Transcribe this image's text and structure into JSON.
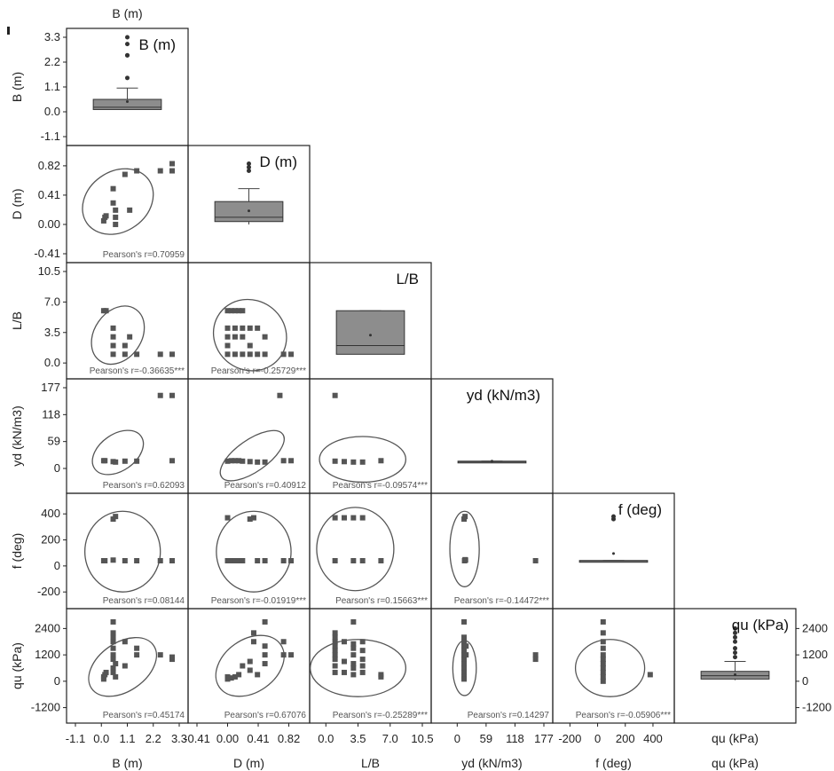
{
  "panel_mark": "▌",
  "variables": [
    {
      "key": "B",
      "label": "B (m)",
      "diag_label": "B (m)",
      "ticks": [
        "-1.1",
        "0.0",
        "1.1",
        "2.2",
        "3.3"
      ],
      "min": -1.1,
      "max": 3.3
    },
    {
      "key": "D",
      "label": "D (m)",
      "diag_label": "D (m)",
      "ticks": [
        "-0.41",
        "0.00",
        "0.41",
        "0.82"
      ],
      "min": -0.41,
      "max": 0.98
    },
    {
      "key": "LB",
      "label": "L/B",
      "diag_label": "L/B",
      "ticks": [
        "0.0",
        "3.5",
        "7.0",
        "10.5"
      ],
      "min": -0.8,
      "max": 10.5
    },
    {
      "key": "yd",
      "label": "yd  (kN/m3)",
      "diag_label": "yd  (kN/m3)",
      "ticks": [
        "0",
        "59",
        "118",
        "177"
      ],
      "min": -35,
      "max": 177
    },
    {
      "key": "f",
      "label": "f (deg)",
      "diag_label": "f (deg)",
      "ticks": [
        "-200",
        "0",
        "200",
        "400"
      ],
      "min": -260,
      "max": 490
    },
    {
      "key": "qu",
      "label": "qu (kPa)",
      "diag_label": "qu (kPa)",
      "ticks": [
        "-1200",
        "0",
        "1200",
        "2400"
      ],
      "min": -1500,
      "max": 2900
    }
  ],
  "top_axis_label": "B (m)",
  "bottom_extra_label": "qu (kPa)",
  "chart_data": {
    "type": "scatter",
    "title": "",
    "correlations": [
      {
        "x": "B",
        "y": "D",
        "label": "Pearson's r=0.70959"
      },
      {
        "x": "B",
        "y": "LB",
        "label": "Pearson's r=-0.36635***"
      },
      {
        "x": "D",
        "y": "LB",
        "label": "Pearson's r=-0.25729***"
      },
      {
        "x": "B",
        "y": "yd",
        "label": "Pearson's r=0.62093"
      },
      {
        "x": "D",
        "y": "yd",
        "label": "Pearson's r=0.40912"
      },
      {
        "x": "LB",
        "y": "yd",
        "label": "Pearson's r=-0.09574***"
      },
      {
        "x": "B",
        "y": "f",
        "label": "Pearson's r=0.08144"
      },
      {
        "x": "D",
        "y": "f",
        "label": "Pearson's r=-0.01919***"
      },
      {
        "x": "LB",
        "y": "f",
        "label": "Pearson's r=0.15663***"
      },
      {
        "x": "yd",
        "y": "f",
        "label": "Pearson's r=-0.14472***"
      },
      {
        "x": "B",
        "y": "qu",
        "label": "Pearson's r=0.45174"
      },
      {
        "x": "D",
        "y": "qu",
        "label": "Pearson's r=0.67076"
      },
      {
        "x": "LB",
        "y": "qu",
        "label": "Pearson's r=-0.25289***"
      },
      {
        "x": "yd",
        "y": "qu",
        "label": "Pearson's r=0.14297"
      },
      {
        "x": "f",
        "y": "qu",
        "label": "Pearson's r=-0.05906***"
      }
    ],
    "scatter_points": {
      "B-D": [
        [
          0.1,
          0.05
        ],
        [
          0.15,
          0.1
        ],
        [
          0.2,
          0.12
        ],
        [
          0.5,
          0.3
        ],
        [
          0.5,
          0.5
        ],
        [
          0.6,
          0.2
        ],
        [
          0.6,
          0.1
        ],
        [
          0.6,
          0.0
        ],
        [
          1.0,
          0.7
        ],
        [
          1.2,
          0.2
        ],
        [
          1.5,
          0.75
        ],
        [
          2.5,
          0.75
        ],
        [
          3.0,
          0.85
        ],
        [
          3.0,
          0.75
        ]
      ],
      "B-LB": [
        [
          0.1,
          6
        ],
        [
          0.2,
          6
        ],
        [
          0.5,
          4
        ],
        [
          0.5,
          3
        ],
        [
          0.5,
          2
        ],
        [
          0.5,
          1
        ],
        [
          1.0,
          2
        ],
        [
          1.0,
          1
        ],
        [
          1.2,
          3
        ],
        [
          1.5,
          1
        ],
        [
          2.5,
          1
        ],
        [
          3.0,
          1
        ]
      ],
      "D-LB": [
        [
          0.0,
          6
        ],
        [
          0.05,
          6
        ],
        [
          0.1,
          6
        ],
        [
          0.15,
          6
        ],
        [
          0.2,
          6
        ],
        [
          0.0,
          4
        ],
        [
          0.1,
          4
        ],
        [
          0.2,
          4
        ],
        [
          0.3,
          4
        ],
        [
          0.4,
          4
        ],
        [
          0.0,
          3
        ],
        [
          0.1,
          3
        ],
        [
          0.2,
          3
        ],
        [
          0.3,
          2
        ],
        [
          0.0,
          2
        ],
        [
          0.0,
          1
        ],
        [
          0.1,
          1
        ],
        [
          0.2,
          1
        ],
        [
          0.3,
          1
        ],
        [
          0.4,
          1
        ],
        [
          0.5,
          1
        ],
        [
          0.5,
          3
        ],
        [
          0.75,
          1
        ],
        [
          0.85,
          1
        ]
      ],
      "B-yd": [
        [
          0.1,
          17
        ],
        [
          0.15,
          17
        ],
        [
          0.5,
          15
        ],
        [
          0.6,
          14
        ],
        [
          1.0,
          16
        ],
        [
          1.5,
          16
        ],
        [
          2.5,
          160
        ],
        [
          3.0,
          160
        ],
        [
          3.0,
          17
        ]
      ],
      "D-yd": [
        [
          0.0,
          16
        ],
        [
          0.05,
          17
        ],
        [
          0.1,
          17
        ],
        [
          0.15,
          17
        ],
        [
          0.2,
          16
        ],
        [
          0.3,
          15
        ],
        [
          0.4,
          14
        ],
        [
          0.5,
          14
        ],
        [
          0.7,
          160
        ],
        [
          0.75,
          17
        ],
        [
          0.85,
          17
        ]
      ],
      "LB-yd": [
        [
          1,
          160
        ],
        [
          1,
          16
        ],
        [
          2,
          15
        ],
        [
          3,
          14
        ],
        [
          4,
          14
        ],
        [
          6,
          17
        ]
      ],
      "yd-f": [
        [
          14,
          360
        ],
        [
          16,
          380
        ],
        [
          15,
          40
        ],
        [
          17,
          45
        ],
        [
          16,
          48
        ],
        [
          160,
          40
        ]
      ],
      "B-f": [
        [
          0.1,
          40
        ],
        [
          0.15,
          40
        ],
        [
          0.5,
          360
        ],
        [
          0.6,
          380
        ],
        [
          0.5,
          45
        ],
        [
          1.0,
          40
        ],
        [
          1.5,
          40
        ],
        [
          2.5,
          40
        ],
        [
          3.0,
          40
        ]
      ],
      "D-f": [
        [
          0.0,
          40
        ],
        [
          0.0,
          370
        ],
        [
          0.05,
          40
        ],
        [
          0.1,
          40
        ],
        [
          0.15,
          40
        ],
        [
          0.2,
          40
        ],
        [
          0.3,
          360
        ],
        [
          0.35,
          370
        ],
        [
          0.4,
          40
        ],
        [
          0.5,
          40
        ],
        [
          0.75,
          40
        ],
        [
          0.85,
          40
        ]
      ],
      "LB-f": [
        [
          1,
          40
        ],
        [
          1,
          370
        ],
        [
          2,
          370
        ],
        [
          3,
          370
        ],
        [
          3,
          40
        ],
        [
          4,
          40
        ],
        [
          4,
          370
        ],
        [
          6,
          40
        ]
      ],
      "f-qu": [
        [
          40,
          2700
        ],
        [
          40,
          2200
        ],
        [
          40,
          1800
        ],
        [
          40,
          1500
        ],
        [
          40,
          1200
        ],
        [
          40,
          1000
        ],
        [
          40,
          800
        ],
        [
          40,
          600
        ],
        [
          40,
          400
        ],
        [
          40,
          200
        ],
        [
          40,
          0
        ],
        [
          380,
          300
        ]
      ],
      "B-qu": [
        [
          0.1,
          100
        ],
        [
          0.1,
          200
        ],
        [
          0.15,
          300
        ],
        [
          0.2,
          400
        ],
        [
          0.5,
          2700
        ],
        [
          0.5,
          2200
        ],
        [
          0.5,
          2000
        ],
        [
          0.5,
          1800
        ],
        [
          0.5,
          1500
        ],
        [
          0.5,
          1200
        ],
        [
          0.5,
          1000
        ],
        [
          0.5,
          600
        ],
        [
          0.5,
          400
        ],
        [
          0.6,
          800
        ],
        [
          0.6,
          200
        ],
        [
          1.0,
          1800
        ],
        [
          1.0,
          700
        ],
        [
          1.5,
          1500
        ],
        [
          1.5,
          1200
        ],
        [
          2.5,
          1200
        ],
        [
          3.0,
          1000
        ],
        [
          3.0,
          1100
        ]
      ],
      "D-qu": [
        [
          0.0,
          100
        ],
        [
          0.0,
          200
        ],
        [
          0.05,
          150
        ],
        [
          0.1,
          200
        ],
        [
          0.15,
          300
        ],
        [
          0.2,
          700
        ],
        [
          0.3,
          900
        ],
        [
          0.3,
          500
        ],
        [
          0.35,
          2200
        ],
        [
          0.35,
          1800
        ],
        [
          0.4,
          300
        ],
        [
          0.5,
          2700
        ],
        [
          0.5,
          1600
        ],
        [
          0.5,
          1200
        ],
        [
          0.5,
          800
        ],
        [
          0.75,
          1800
        ],
        [
          0.75,
          1200
        ],
        [
          0.85,
          1200
        ]
      ],
      "LB-qu": [
        [
          1,
          2200
        ],
        [
          1,
          2000
        ],
        [
          1,
          1800
        ],
        [
          1,
          1600
        ],
        [
          1,
          1400
        ],
        [
          1,
          1200
        ],
        [
          1,
          1000
        ],
        [
          1,
          700
        ],
        [
          1,
          400
        ],
        [
          2,
          1800
        ],
        [
          2,
          900
        ],
        [
          2,
          400
        ],
        [
          3,
          2700
        ],
        [
          3,
          1700
        ],
        [
          3,
          1500
        ],
        [
          3,
          1200
        ],
        [
          3,
          800
        ],
        [
          3,
          600
        ],
        [
          3,
          300
        ],
        [
          4,
          1800
        ],
        [
          4,
          1400
        ],
        [
          4,
          1000
        ],
        [
          4,
          700
        ],
        [
          4,
          400
        ],
        [
          6,
          300
        ],
        [
          6,
          200
        ]
      ],
      "yd-qu": [
        [
          14,
          2700
        ],
        [
          14,
          2000
        ],
        [
          14,
          1800
        ],
        [
          14,
          1600
        ],
        [
          14,
          1400
        ],
        [
          14,
          1200
        ],
        [
          14,
          1000
        ],
        [
          14,
          800
        ],
        [
          14,
          600
        ],
        [
          14,
          400
        ],
        [
          14,
          200
        ],
        [
          14,
          100
        ],
        [
          18,
          1600
        ],
        [
          18,
          1200
        ],
        [
          160,
          1200
        ],
        [
          160,
          1000
        ]
      ]
    },
    "ellipses": {
      "B-D": {
        "cx": 0.7,
        "cy": 0.32,
        "rx": 1.6,
        "ry": 0.42,
        "tilt": 1
      },
      "B-LB": {
        "cx": 0.7,
        "cy": 3.2,
        "rx": 1.0,
        "ry": 3.6,
        "tilt": -1
      },
      "D-LB": {
        "cx": 0.3,
        "cy": 3.2,
        "rx": 0.5,
        "ry": 4.0,
        "tilt": -1
      },
      "B-yd": {
        "cx": 0.7,
        "cy": 35,
        "rx": 1.2,
        "ry": 40,
        "tilt": 1
      },
      "D-yd": {
        "cx": 0.33,
        "cy": 28,
        "rx": 0.5,
        "ry": 35,
        "tilt": 1
      },
      "LB-yd": {
        "cx": 4.0,
        "cy": 20,
        "rx": 4.7,
        "ry": 50,
        "tilt": 0
      },
      "B-f": {
        "cx": 0.9,
        "cy": 110,
        "rx": 1.6,
        "ry": 310,
        "tilt": 0
      },
      "D-f": {
        "cx": 0.35,
        "cy": 110,
        "rx": 0.5,
        "ry": 310,
        "tilt": 0
      },
      "LB-f": {
        "cx": 3.2,
        "cy": 130,
        "rx": 4.2,
        "ry": 320,
        "tilt": 0
      },
      "yd-f": {
        "cx": 15,
        "cy": 130,
        "rx": 30,
        "ry": 290,
        "tilt": 0
      },
      "B-qu": {
        "cx": 0.9,
        "cy": 650,
        "rx": 1.6,
        "ry": 1100,
        "tilt": 1
      },
      "D-qu": {
        "cx": 0.3,
        "cy": 700,
        "rx": 0.5,
        "ry": 1200,
        "tilt": 1
      },
      "LB-qu": {
        "cx": 3.5,
        "cy": 600,
        "rx": 5.2,
        "ry": 1300,
        "tilt": 0
      },
      "yd-qu": {
        "cx": 15,
        "cy": 600,
        "rx": 24,
        "ry": 1250,
        "tilt": 0
      },
      "f-qu": {
        "cx": 90,
        "cy": 600,
        "rx": 250,
        "ry": 1300,
        "tilt": 0
      }
    },
    "boxplots": {
      "B": {
        "q1": 0.1,
        "median": 0.2,
        "q3": 0.55,
        "whisker_low": 0.1,
        "whisker_high": 1.05,
        "mean": 0.45,
        "outliers": [
          1.5,
          2.5,
          2.5,
          3.0,
          3.3
        ]
      },
      "D": {
        "q1": 0.04,
        "median": 0.1,
        "q3": 0.32,
        "whisker_low": 0.0,
        "whisker_high": 0.5,
        "mean": 0.19,
        "outliers": [
          0.75,
          0.8,
          0.85
        ]
      },
      "LB": {
        "q1": 1.0,
        "median": 2.0,
        "q3": 6.0,
        "whisker_low": 1.0,
        "whisker_high": 6.0,
        "mean": 3.2,
        "outliers": []
      },
      "yd": {
        "q1": 14,
        "median": 15,
        "q3": 16,
        "whisker_low": 14,
        "whisker_high": 16,
        "mean": 16,
        "outliers": []
      },
      "f": {
        "q1": 38,
        "median": 40,
        "q3": 42,
        "whisker_low": 38,
        "whisker_high": 42,
        "mean": 95,
        "outliers": [
          360,
          380
        ]
      },
      "qu": {
        "q1": 100,
        "median": 250,
        "q3": 450,
        "whisker_low": 50,
        "whisker_high": 900,
        "mean": 300,
        "outliers": [
          1100,
          1300,
          1500,
          1800,
          2000,
          2200,
          2400
        ]
      }
    }
  }
}
